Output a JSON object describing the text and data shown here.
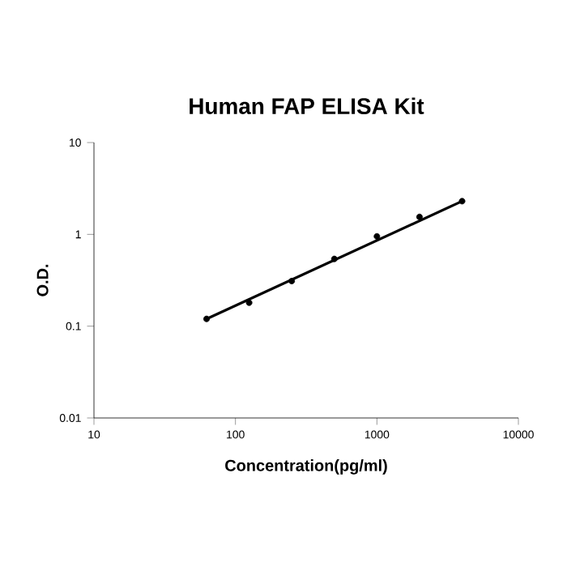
{
  "chart_data": {
    "type": "scatter",
    "title": "Human FAP ELISA Kit",
    "xlabel": "Concentration(pg/ml)",
    "ylabel": "O.D.",
    "log": "xy",
    "xlim": [
      10,
      10000
    ],
    "ylim": [
      0.01,
      10
    ],
    "xticks": [
      10,
      100,
      1000,
      10000
    ],
    "yticks": [
      0.01,
      0.1,
      1,
      10
    ],
    "series": [
      {
        "color": "#000000",
        "marker": "circle",
        "x": [
          62.5,
          125,
          250,
          500,
          1000,
          2000,
          4000
        ],
        "values": [
          0.12,
          0.18,
          0.31,
          0.54,
          0.95,
          1.55,
          2.3
        ]
      },
      {
        "type": "line",
        "color": "#000000",
        "marker": "none",
        "line_style": "solid",
        "x": [
          62.5,
          4000
        ],
        "values": [
          0.12,
          2.3
        ]
      }
    ]
  }
}
